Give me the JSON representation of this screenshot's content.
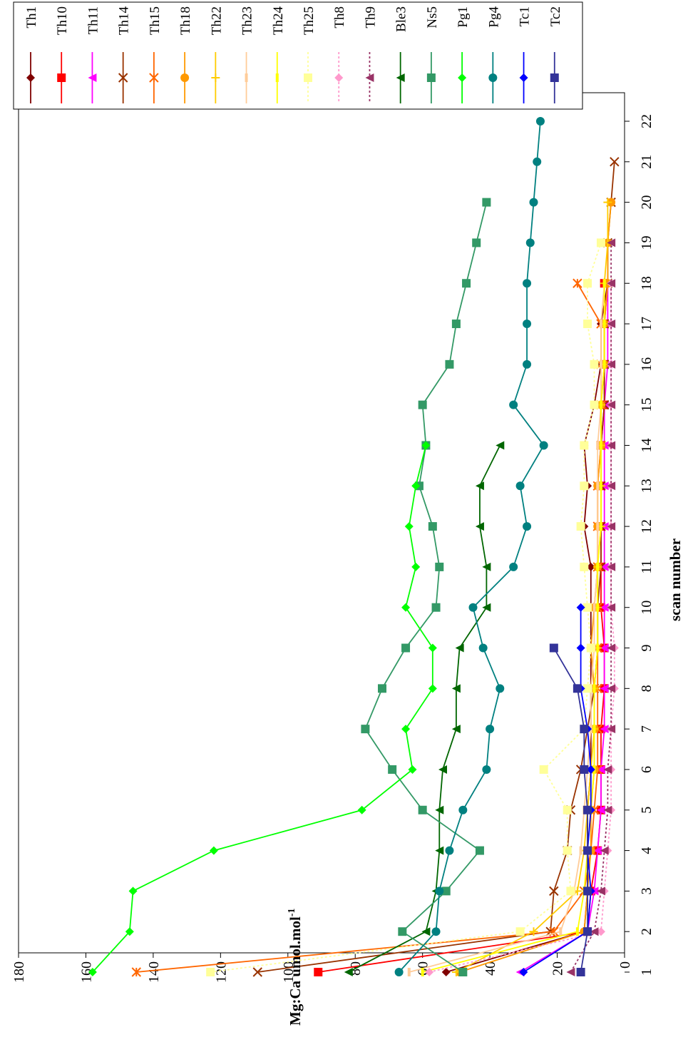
{
  "chart_data": {
    "type": "line",
    "title": "",
    "xlabel": "scan number",
    "ylabel": "Mg:Ca umol.mol-1",
    "ylabel_main": "Mg:Ca umol.mol",
    "ylabel_sup": "-1",
    "xlim": [
      0,
      23
    ],
    "ylim": [
      0,
      180
    ],
    "xticks": [
      1,
      2,
      3,
      4,
      5,
      6,
      7,
      8,
      9,
      10,
      11,
      12,
      13,
      14,
      15,
      16,
      17,
      18,
      19,
      20,
      21,
      22
    ],
    "yticks": [
      0,
      20,
      40,
      60,
      80,
      100,
      120,
      140,
      160,
      180
    ],
    "orientation": "rotated 90 degrees clockwise",
    "legend_position": "top-right",
    "series": [
      {
        "name": "Th1",
        "color": "#800000",
        "marker": "diamond",
        "dash": "",
        "x": [
          1,
          2,
          3,
          4,
          5,
          6,
          7,
          8,
          9,
          10,
          11,
          12,
          13,
          14,
          15,
          16,
          17,
          18
        ],
        "y": [
          53,
          12,
          11,
          11,
          11,
          10,
          10,
          10,
          10,
          10,
          10,
          12,
          11,
          12,
          9,
          7,
          7,
          5
        ]
      },
      {
        "name": "Th10",
        "color": "#ff0000",
        "marker": "square",
        "dash": "",
        "x": [
          1,
          2,
          3,
          4,
          5,
          6,
          7,
          8,
          9,
          10,
          11,
          12,
          13,
          14,
          15,
          16,
          17,
          18
        ],
        "y": [
          91,
          11,
          10,
          8,
          7,
          7,
          7,
          6,
          6,
          7,
          7,
          7,
          7,
          7,
          6,
          6,
          6,
          6
        ]
      },
      {
        "name": "Th11",
        "color": "#ff00ff",
        "marker": "triangle-left",
        "dash": "",
        "x": [
          1,
          2,
          3,
          4,
          5,
          6,
          7,
          8,
          9,
          10,
          11,
          12,
          13,
          14,
          15,
          16,
          17,
          18
        ],
        "y": [
          31,
          11,
          9,
          8,
          7,
          7,
          6,
          6,
          6,
          6,
          6,
          6,
          6,
          6,
          6,
          5,
          5,
          5
        ]
      },
      {
        "name": "Th14",
        "color": "#993300",
        "marker": "x",
        "dash": "",
        "x": [
          1,
          2,
          3,
          4,
          5,
          6,
          7,
          8,
          9,
          10,
          11,
          12,
          13,
          14,
          15,
          16,
          17,
          18,
          19,
          20,
          21
        ],
        "y": [
          109,
          22,
          21,
          17,
          16,
          13,
          11,
          9,
          8,
          8,
          7,
          7,
          7,
          7,
          6,
          6,
          6,
          5,
          5,
          4,
          3
        ]
      },
      {
        "name": "Th15",
        "color": "#ff6600",
        "marker": "star",
        "dash": "",
        "x": [
          1,
          2,
          3,
          4,
          5,
          6,
          7,
          8,
          9,
          10,
          11,
          12,
          13,
          14,
          15,
          16,
          17,
          18
        ],
        "y": [
          145,
          21,
          12,
          10,
          9,
          8,
          8,
          8,
          8,
          8,
          8,
          8,
          8,
          7,
          7,
          7,
          7,
          14
        ]
      },
      {
        "name": "Th18",
        "color": "#ff9900",
        "marker": "circle",
        "dash": "",
        "x": [
          1,
          2,
          3,
          4,
          5,
          6,
          7,
          8,
          9,
          10,
          11,
          12,
          13,
          14,
          15,
          16,
          17,
          18,
          19,
          20
        ],
        "y": [
          49,
          12,
          11,
          10,
          10,
          9,
          9,
          9,
          10,
          9,
          8,
          8,
          8,
          7,
          7,
          6,
          6,
          5,
          5,
          4
        ]
      },
      {
        "name": "Th22",
        "color": "#ffcc00",
        "marker": "plus",
        "dash": "",
        "x": [
          1,
          2,
          3,
          4,
          5,
          6,
          7,
          8,
          9,
          10,
          11,
          12,
          13,
          14,
          15,
          16,
          17,
          18,
          19,
          20
        ],
        "y": [
          50,
          27,
          14,
          12,
          11,
          10,
          9,
          9,
          8,
          8,
          8,
          7,
          7,
          7,
          7,
          6,
          6,
          6,
          5,
          5
        ]
      },
      {
        "name": "Th23",
        "color": "#ffcc99",
        "marker": "dash",
        "dash": "",
        "x": [
          1,
          2,
          3,
          4,
          5,
          6,
          7,
          8,
          9,
          10,
          11,
          12,
          13,
          14,
          15,
          16,
          17,
          18
        ],
        "y": [
          64,
          19,
          15,
          13,
          12,
          11,
          10,
          10,
          9,
          9,
          8,
          8,
          8,
          8,
          7,
          7,
          7,
          6
        ]
      },
      {
        "name": "Th24",
        "color": "#ffff00",
        "marker": "dash",
        "dash": "",
        "x": [
          1,
          2,
          3,
          4,
          5,
          6,
          7,
          8,
          9,
          10,
          11,
          12,
          13,
          14,
          15,
          16,
          17,
          18
        ],
        "y": [
          60,
          14,
          12,
          11,
          10,
          9,
          9,
          9,
          8,
          8,
          8,
          7,
          7,
          7,
          7,
          6,
          6,
          6
        ]
      },
      {
        "name": "Th25",
        "color": "#ffff99",
        "marker": "square",
        "dash": "3,3",
        "x": [
          1,
          2,
          3,
          4,
          5,
          6,
          7,
          8,
          9,
          10,
          11,
          12,
          13,
          14,
          15,
          16,
          17,
          18,
          19
        ],
        "y": [
          123,
          31,
          16,
          17,
          17,
          24,
          12,
          11,
          10,
          11,
          12,
          13,
          12,
          12,
          9,
          9,
          11,
          11,
          7
        ]
      },
      {
        "name": "Th8",
        "color": "#ff99cc",
        "marker": "diamond",
        "dash": "3,3",
        "x": [
          1,
          2,
          3,
          4,
          5,
          6,
          7,
          8,
          9,
          10,
          11,
          12,
          13,
          14,
          15,
          16,
          17,
          18
        ],
        "y": [
          58,
          7,
          6,
          5,
          4,
          4,
          4,
          3,
          3,
          4,
          4,
          4,
          4,
          4,
          4,
          4,
          4,
          4
        ]
      },
      {
        "name": "Th9",
        "color": "#993366",
        "marker": "triangle-left",
        "dash": "3,3",
        "x": [
          1,
          2,
          3,
          4,
          5,
          6,
          7,
          8,
          9,
          10,
          11,
          12,
          13,
          14,
          15,
          16,
          17,
          18,
          19
        ],
        "y": [
          16,
          9,
          7,
          6,
          5,
          5,
          4,
          4,
          4,
          4,
          4,
          4,
          4,
          4,
          4,
          4,
          4,
          4,
          4
        ]
      },
      {
        "name": "Ble3",
        "color": "#006600",
        "marker": "triangle-left",
        "dash": "",
        "x": [
          1,
          2,
          3,
          4,
          5,
          6,
          7,
          8,
          9,
          10,
          11,
          12,
          13,
          14
        ],
        "y": [
          82,
          59,
          56,
          55,
          55,
          54,
          50,
          50,
          49,
          41,
          41,
          43,
          43,
          37
        ]
      },
      {
        "name": "Ns5",
        "color": "#339966",
        "marker": "square",
        "dash": "",
        "x": [
          1,
          2,
          3,
          4,
          5,
          6,
          7,
          8,
          9,
          10,
          11,
          12,
          13,
          14,
          15,
          16,
          17,
          18,
          19,
          20
        ],
        "y": [
          48,
          66,
          53,
          43,
          60,
          69,
          77,
          72,
          65,
          56,
          55,
          57,
          61,
          59,
          60,
          52,
          50,
          47,
          44,
          41
        ]
      },
      {
        "name": "Pg1",
        "color": "#00ff00",
        "marker": "diamond",
        "dash": "",
        "x": [
          1,
          2,
          3,
          4,
          5,
          6,
          7,
          8,
          9,
          10,
          11,
          12,
          13,
          14
        ],
        "y": [
          158,
          147,
          146,
          122,
          78,
          63,
          65,
          57,
          57,
          65,
          62,
          64,
          62,
          59
        ]
      },
      {
        "name": "Pg4",
        "color": "#008080",
        "marker": "circle",
        "dash": "",
        "x": [
          1,
          2,
          3,
          4,
          5,
          6,
          7,
          8,
          9,
          10,
          11,
          12,
          13,
          14,
          15,
          16,
          17,
          18,
          19,
          20,
          21,
          22
        ],
        "y": [
          67,
          56,
          55,
          52,
          48,
          41,
          40,
          37,
          42,
          45,
          33,
          29,
          31,
          24,
          33,
          29,
          29,
          29,
          28,
          27,
          26,
          25
        ]
      },
      {
        "name": "Tc1",
        "color": "#0000ff",
        "marker": "diamond",
        "dash": "",
        "x": [
          1,
          2,
          3,
          4,
          5,
          6,
          7,
          8,
          9,
          10
        ],
        "y": [
          30,
          11,
          10,
          11,
          10,
          10,
          11,
          13,
          13,
          13
        ]
      },
      {
        "name": "Tc2",
        "color": "#333399",
        "marker": "square",
        "dash": "",
        "x": [
          1,
          2,
          3,
          4,
          5,
          6,
          7,
          8,
          9
        ],
        "y": [
          13,
          11,
          11,
          11,
          11,
          12,
          12,
          14,
          21
        ]
      }
    ]
  }
}
